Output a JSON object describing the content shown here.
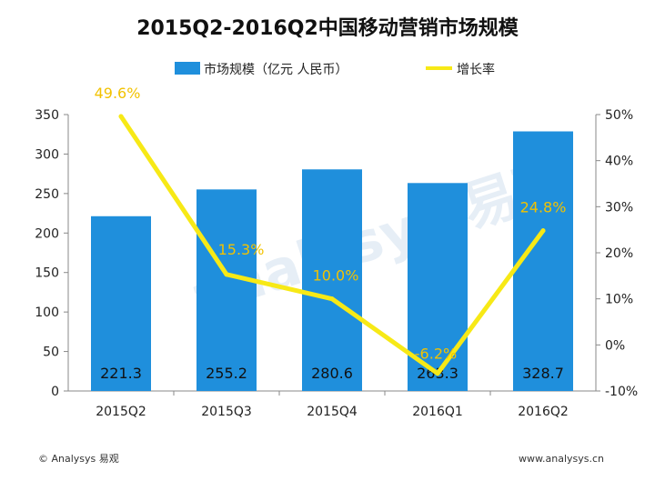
{
  "title": "2015Q2-2016Q2中国移动营销市场规模",
  "legend": {
    "bar_label": "市场规模（亿元 人民币）",
    "line_label": "增长率"
  },
  "footer": {
    "left": "© Analysys 易观",
    "right": "www.analysys.cn"
  },
  "colors": {
    "bar": "#1f8fdc",
    "line": "#f7e916",
    "rate_label": "#f2c200",
    "axis": "#888888"
  },
  "chart_data": {
    "type": "bar",
    "categories": [
      "2015Q2",
      "2015Q3",
      "2015Q4",
      "2016Q1",
      "2016Q2"
    ],
    "series": [
      {
        "name": "市场规模（亿元 人民币）",
        "type": "bar",
        "axis": "left",
        "values": [
          221.3,
          255.2,
          280.6,
          263.3,
          328.7
        ],
        "labels": [
          "221.3",
          "255.2",
          "280.6",
          "263.3",
          "328.7"
        ]
      },
      {
        "name": "增长率",
        "type": "line",
        "axis": "right",
        "values": [
          49.6,
          15.3,
          10.0,
          -6.2,
          24.8
        ],
        "labels": [
          "49.6%",
          "15.3%",
          "10.0%",
          "-6.2%",
          "24.8%"
        ]
      }
    ],
    "y_left": {
      "min": 0,
      "max": 350,
      "ticks": [
        "0",
        "50",
        "100",
        "150",
        "200",
        "250",
        "300",
        "350"
      ]
    },
    "y_right": {
      "min": -10,
      "max": 50,
      "ticks": [
        "-10%",
        "0%",
        "10%",
        "20%",
        "30%",
        "40%",
        "50%"
      ]
    },
    "grid": false,
    "legend_position": "top"
  }
}
